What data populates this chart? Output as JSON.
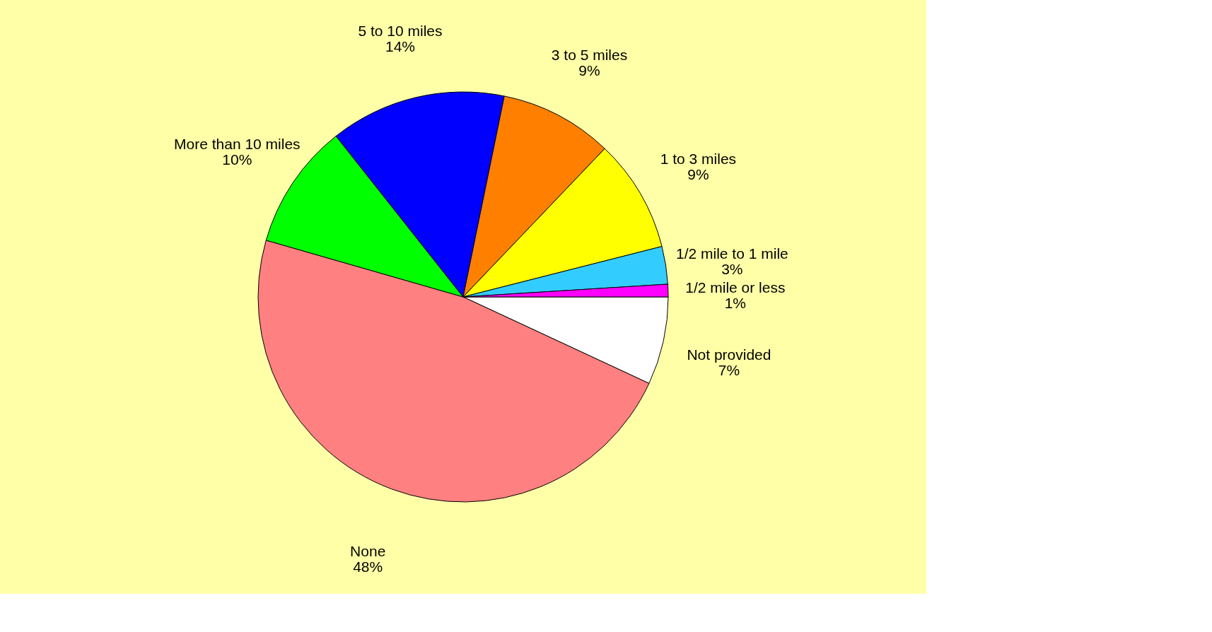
{
  "chart_data": {
    "type": "pie",
    "categories": [
      "Not provided",
      "None",
      "More than 10 miles",
      "5 to 10 miles",
      "3 to 5 miles",
      "1 to 3 miles",
      "1/2 mile to 1 mile",
      "1/2 mile or less"
    ],
    "values": [
      7,
      48,
      10,
      14,
      9,
      9,
      3,
      1
    ],
    "value_labels": [
      "7%",
      "48%",
      "10%",
      "14%",
      "9%",
      "9%",
      "3%",
      "1%"
    ],
    "colors": [
      "#ffffff",
      "#ff8080",
      "#00ff00",
      "#0000ff",
      "#ff8000",
      "#ffff00",
      "#33ccff",
      "#ff00ff"
    ],
    "legend": false
  }
}
